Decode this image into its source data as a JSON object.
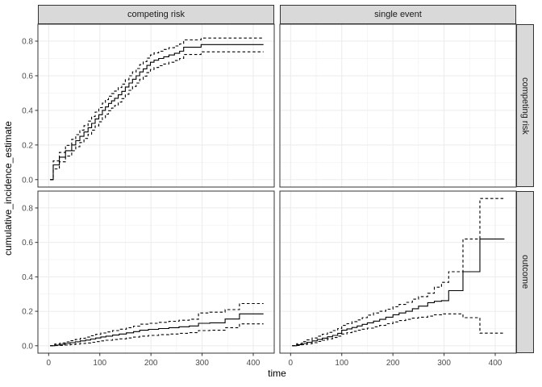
{
  "figure": {
    "col_facets": [
      "competing risk",
      "single event"
    ],
    "row_facets": [
      "competing risk",
      "outcome"
    ],
    "x": {
      "label": "time",
      "ticks": [
        0,
        100,
        200,
        300,
        400
      ],
      "tick_labels": [
        "0",
        "100",
        "200",
        "300",
        "400"
      ],
      "minor": [
        50,
        150,
        250,
        350
      ],
      "limits": [
        -21,
        441
      ]
    },
    "y": {
      "label": "cumulative_incidence_estimate",
      "ticks": [
        0,
        0.2,
        0.4,
        0.6,
        0.8
      ],
      "tick_labels": [
        "0.0",
        "0.2",
        "0.4",
        "0.6",
        "0.8"
      ],
      "minor": [
        0.1,
        0.3,
        0.5,
        0.7
      ],
      "limits": [
        -0.043,
        0.898
      ]
    },
    "colors": {
      "line": "#000000",
      "panel_border": "#333333",
      "grid_major": "#ebebeb",
      "grid_minor": "#f2f2f2",
      "strip_fill": "#d9d9d9",
      "strip_border": "#333333",
      "tick_text": "#4d4d4d"
    }
  },
  "chart_data": {
    "type": "line",
    "interpolation": "step-after",
    "title": "",
    "xlabel": "time",
    "ylabel": "cumulative_incidence_estimate",
    "legend": "none",
    "grid": "on",
    "columns": [
      "time",
      "estimate",
      "lower_ci",
      "upper_ci"
    ],
    "facets": [
      {
        "col": "competing risk",
        "row": "competing risk",
        "points": [
          [
            3,
            0,
            0,
            0
          ],
          [
            9,
            0.085,
            0.062,
            0.108
          ],
          [
            21,
            0.13,
            0.103,
            0.157
          ],
          [
            33,
            0.167,
            0.136,
            0.198
          ],
          [
            45,
            0.2,
            0.167,
            0.233
          ],
          [
            53,
            0.225,
            0.19,
            0.26
          ],
          [
            61,
            0.25,
            0.214,
            0.286
          ],
          [
            69,
            0.275,
            0.238,
            0.312
          ],
          [
            77,
            0.3,
            0.262,
            0.338
          ],
          [
            84,
            0.325,
            0.286,
            0.364
          ],
          [
            91,
            0.35,
            0.31,
            0.39
          ],
          [
            98,
            0.375,
            0.334,
            0.416
          ],
          [
            105,
            0.4,
            0.358,
            0.442
          ],
          [
            111,
            0.42,
            0.378,
            0.462
          ],
          [
            117,
            0.44,
            0.398,
            0.482
          ],
          [
            123,
            0.455,
            0.413,
            0.497
          ],
          [
            129,
            0.47,
            0.428,
            0.512
          ],
          [
            136,
            0.49,
            0.448,
            0.532
          ],
          [
            143,
            0.51,
            0.468,
            0.552
          ],
          [
            150,
            0.535,
            0.493,
            0.577
          ],
          [
            157,
            0.558,
            0.516,
            0.6
          ],
          [
            164,
            0.58,
            0.538,
            0.622
          ],
          [
            171,
            0.6,
            0.558,
            0.642
          ],
          [
            178,
            0.622,
            0.58,
            0.664
          ],
          [
            185,
            0.64,
            0.598,
            0.682
          ],
          [
            192,
            0.66,
            0.618,
            0.702
          ],
          [
            199,
            0.678,
            0.636,
            0.72
          ],
          [
            206,
            0.69,
            0.648,
            0.732
          ],
          [
            215,
            0.7,
            0.658,
            0.742
          ],
          [
            225,
            0.71,
            0.668,
            0.752
          ],
          [
            235,
            0.72,
            0.678,
            0.762
          ],
          [
            246,
            0.73,
            0.688,
            0.772
          ],
          [
            256,
            0.742,
            0.7,
            0.784
          ],
          [
            264,
            0.765,
            0.723,
            0.807
          ],
          [
            298,
            0.78,
            0.738,
            0.818
          ],
          [
            420,
            0.78,
            0.738,
            0.818
          ]
        ]
      },
      {
        "col": "single event",
        "row": "competing risk",
        "points": []
      },
      {
        "col": "competing risk",
        "row": "outcome",
        "points": [
          [
            3,
            0,
            0,
            0
          ],
          [
            12,
            0.004,
            0.001,
            0.01
          ],
          [
            22,
            0.008,
            0.002,
            0.016
          ],
          [
            32,
            0.013,
            0.004,
            0.022
          ],
          [
            42,
            0.018,
            0.007,
            0.029
          ],
          [
            52,
            0.023,
            0.01,
            0.036
          ],
          [
            62,
            0.028,
            0.013,
            0.043
          ],
          [
            72,
            0.033,
            0.016,
            0.05
          ],
          [
            82,
            0.039,
            0.02,
            0.058
          ],
          [
            92,
            0.045,
            0.024,
            0.066
          ],
          [
            102,
            0.051,
            0.028,
            0.074
          ],
          [
            112,
            0.056,
            0.032,
            0.08
          ],
          [
            125,
            0.062,
            0.036,
            0.088
          ],
          [
            138,
            0.068,
            0.04,
            0.096
          ],
          [
            152,
            0.075,
            0.045,
            0.105
          ],
          [
            166,
            0.082,
            0.05,
            0.114
          ],
          [
            178,
            0.09,
            0.056,
            0.125
          ],
          [
            195,
            0.095,
            0.06,
            0.13
          ],
          [
            215,
            0.1,
            0.064,
            0.136
          ],
          [
            235,
            0.105,
            0.068,
            0.142
          ],
          [
            255,
            0.11,
            0.072,
            0.148
          ],
          [
            275,
            0.115,
            0.076,
            0.154
          ],
          [
            293,
            0.13,
            0.088,
            0.19
          ],
          [
            315,
            0.133,
            0.09,
            0.195
          ],
          [
            345,
            0.155,
            0.105,
            0.21
          ],
          [
            373,
            0.185,
            0.127,
            0.245
          ],
          [
            420,
            0.185,
            0.127,
            0.245
          ]
        ]
      },
      {
        "col": "single event",
        "row": "outcome",
        "points": [
          [
            3,
            0,
            0,
            0
          ],
          [
            12,
            0.006,
            0.002,
            0.012
          ],
          [
            22,
            0.013,
            0.006,
            0.024
          ],
          [
            32,
            0.02,
            0.012,
            0.034
          ],
          [
            42,
            0.028,
            0.018,
            0.045
          ],
          [
            52,
            0.036,
            0.025,
            0.056
          ],
          [
            62,
            0.044,
            0.032,
            0.067
          ],
          [
            72,
            0.052,
            0.04,
            0.078
          ],
          [
            82,
            0.06,
            0.048,
            0.088
          ],
          [
            92,
            0.072,
            0.056,
            0.1
          ],
          [
            100,
            0.09,
            0.068,
            0.118
          ],
          [
            110,
            0.098,
            0.076,
            0.128
          ],
          [
            120,
            0.106,
            0.084,
            0.14
          ],
          [
            130,
            0.115,
            0.09,
            0.15
          ],
          [
            140,
            0.124,
            0.096,
            0.163
          ],
          [
            150,
            0.133,
            0.102,
            0.178
          ],
          [
            162,
            0.143,
            0.11,
            0.19
          ],
          [
            174,
            0.153,
            0.118,
            0.2
          ],
          [
            186,
            0.166,
            0.128,
            0.212
          ],
          [
            200,
            0.18,
            0.138,
            0.226
          ],
          [
            212,
            0.19,
            0.146,
            0.24
          ],
          [
            225,
            0.2,
            0.153,
            0.252
          ],
          [
            238,
            0.215,
            0.16,
            0.27
          ],
          [
            250,
            0.23,
            0.166,
            0.285
          ],
          [
            268,
            0.25,
            0.172,
            0.305
          ],
          [
            281,
            0.258,
            0.18,
            0.34
          ],
          [
            295,
            0.262,
            0.185,
            0.368
          ],
          [
            309,
            0.32,
            0.185,
            0.43
          ],
          [
            337,
            0.43,
            0.163,
            0.62
          ],
          [
            370,
            0.62,
            0.073,
            0.855
          ],
          [
            418,
            0.62,
            0.073,
            0.855
          ]
        ]
      }
    ]
  }
}
